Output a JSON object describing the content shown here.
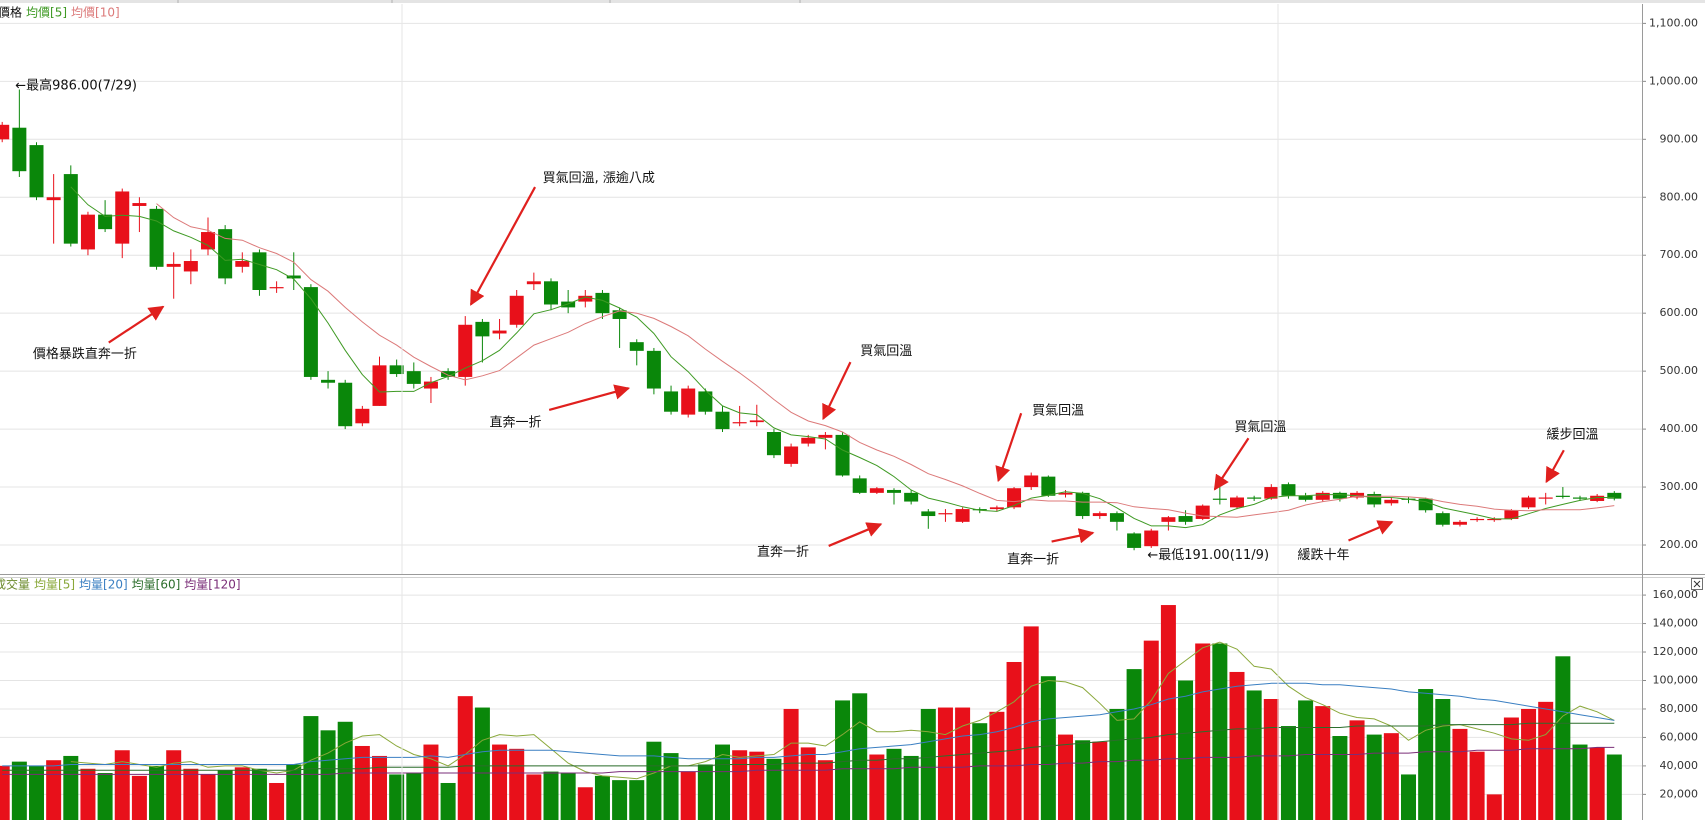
{
  "chart_data": [
    {
      "type": "candlestick",
      "label": "價格",
      "open": [
        900,
        920,
        890,
        795,
        840,
        710,
        770,
        720,
        785,
        780,
        680,
        672,
        710,
        745,
        680,
        705,
        645,
        665,
        645,
        485,
        480,
        410,
        440,
        510,
        500,
        470,
        500,
        490,
        585,
        565,
        580,
        650,
        655,
        620,
        620,
        635,
        605,
        550,
        535,
        465,
        425,
        465,
        430,
        410,
        412,
        395,
        340,
        375,
        385,
        390,
        315,
        290,
        295,
        290,
        258,
        255,
        240,
        262,
        262,
        265,
        300,
        318,
        287,
        290,
        250,
        255,
        220,
        198,
        240,
        250,
        245,
        280,
        265,
        282,
        280,
        305,
        285,
        278,
        290,
        282,
        288,
        272,
        280,
        280,
        255,
        235,
        245,
        245,
        245,
        265,
        282,
        285,
        282,
        276,
        290
      ],
      "high": [
        930,
        986,
        895,
        840,
        855,
        775,
        795,
        815,
        800,
        785,
        705,
        710,
        765,
        752,
        705,
        710,
        655,
        705,
        650,
        500,
        485,
        440,
        525,
        520,
        515,
        490,
        505,
        595,
        590,
        590,
        640,
        670,
        660,
        640,
        640,
        640,
        610,
        555,
        540,
        475,
        475,
        470,
        440,
        440,
        442,
        400,
        375,
        390,
        395,
        395,
        320,
        300,
        298,
        295,
        262,
        262,
        265,
        265,
        268,
        300,
        325,
        320,
        295,
        292,
        258,
        258,
        222,
        228,
        250,
        260,
        270,
        300,
        285,
        285,
        305,
        308,
        290,
        293,
        292,
        293,
        292,
        282,
        283,
        282,
        258,
        243,
        248,
        248,
        262,
        285,
        290,
        300,
        285,
        288,
        293
      ],
      "low": [
        895,
        835,
        795,
        720,
        715,
        700,
        740,
        695,
        740,
        675,
        625,
        650,
        700,
        650,
        670,
        630,
        635,
        640,
        485,
        470,
        400,
        405,
        440,
        490,
        470,
        445,
        485,
        475,
        515,
        555,
        575,
        640,
        605,
        600,
        610,
        590,
        540,
        510,
        460,
        425,
        420,
        425,
        395,
        405,
        405,
        350,
        335,
        370,
        365,
        318,
        288,
        288,
        270,
        270,
        228,
        240,
        238,
        255,
        258,
        262,
        295,
        283,
        282,
        245,
        245,
        225,
        191,
        195,
        225,
        235,
        243,
        270,
        262,
        276,
        278,
        280,
        275,
        275,
        275,
        279,
        265,
        268,
        272,
        256,
        232,
        232,
        240,
        240,
        243,
        262,
        270,
        280,
        276,
        274,
        277
      ],
      "close": [
        925,
        845,
        800,
        800,
        720,
        770,
        745,
        810,
        790,
        680,
        685,
        690,
        740,
        660,
        690,
        640,
        645,
        660,
        490,
        480,
        405,
        435,
        510,
        495,
        478,
        482,
        490,
        580,
        560,
        570,
        630,
        655,
        615,
        610,
        630,
        600,
        590,
        535,
        470,
        430,
        470,
        430,
        400,
        412,
        415,
        355,
        370,
        385,
        390,
        320,
        290,
        298,
        290,
        275,
        250,
        255,
        262,
        260,
        265,
        298,
        320,
        285,
        290,
        250,
        255,
        240,
        195,
        225,
        248,
        240,
        268,
        278,
        282,
        280,
        300,
        285,
        278,
        290,
        280,
        290,
        270,
        278,
        278,
        260,
        235,
        240,
        245,
        245,
        260,
        282,
        282,
        283,
        280,
        285,
        280
      ],
      "up_color": "#e8101a",
      "down_color": "#0a870a",
      "series": [
        {
          "name": "均價[5]",
          "color": "#3f9a24",
          "values": [
            null,
            null,
            null,
            null,
            818,
            787,
            767,
            769,
            767,
            759,
            742,
            731,
            717,
            691,
            693,
            684,
            675,
            659,
            625,
            583,
            536,
            494,
            464,
            465,
            465,
            480,
            491,
            505,
            518,
            536,
            566,
            599,
            606,
            616,
            628,
            622,
            609,
            593,
            565,
            525,
            499,
            467,
            440,
            428,
            425,
            402,
            390,
            387,
            383,
            364,
            351,
            337,
            318,
            295,
            281,
            274,
            266,
            260,
            258,
            268,
            281,
            286,
            292,
            289,
            280,
            264,
            246,
            233,
            233,
            230,
            235,
            252,
            263,
            270,
            282,
            285,
            285,
            287,
            287,
            285,
            282,
            282,
            279,
            275,
            264,
            258,
            252,
            245,
            245,
            254,
            263,
            270,
            277,
            282,
            282
          ]
        },
        {
          "name": "均價[10]",
          "color": "#dc7a7a",
          "values": [
            null,
            null,
            null,
            null,
            null,
            null,
            null,
            null,
            null,
            789,
            765,
            749,
            743,
            729,
            726,
            713,
            703,
            688,
            658,
            638,
            610,
            585,
            562,
            545,
            524,
            508,
            493,
            485,
            492,
            501,
            523,
            545,
            556,
            567,
            582,
            594,
            604,
            600,
            591,
            577,
            561,
            538,
            517,
            497,
            475,
            451,
            429,
            414,
            406,
            395,
            377,
            364,
            353,
            339,
            323,
            313,
            302,
            289,
            277,
            275,
            278,
            276,
            276,
            274,
            274,
            273,
            266,
            263,
            261,
            255,
            250,
            249,
            248,
            252,
            256,
            260,
            269,
            275,
            279,
            284,
            284,
            284,
            283,
            281,
            275,
            270,
            267,
            262,
            260,
            259,
            261,
            261,
            261,
            264,
            268
          ]
        }
      ],
      "annotations": [
        "←最高986.00(7/29)",
        "價格暴跌直奔一折",
        "買氣回溫, 漲逾八成",
        "直奔一折",
        "買氣回溫",
        "直奔一折",
        "買氣回溫",
        "直奔一折",
        "買氣回溫",
        "緩跌十年",
        "緩步回溫",
        "←最低191.00(11/9)"
      ],
      "ylim": [
        150,
        1130
      ],
      "yticks": [
        {
          "value": 200,
          "label": "200.00"
        },
        {
          "value": 300,
          "label": "300.00"
        },
        {
          "value": 400,
          "label": "400.00"
        },
        {
          "value": 500,
          "label": "500.00"
        },
        {
          "value": 600,
          "label": "600.00"
        },
        {
          "value": 700,
          "label": "700.00"
        },
        {
          "value": 800,
          "label": "800.00"
        },
        {
          "value": 900,
          "label": "900.00"
        },
        {
          "value": 1000,
          "label": "1,000.00"
        },
        {
          "value": 1100,
          "label": "1,100.00"
        }
      ],
      "grid": true
    },
    {
      "type": "bar",
      "label": "成交量",
      "values": [
        40000,
        43000,
        40000,
        44000,
        47000,
        38000,
        35000,
        51000,
        33000,
        40000,
        51000,
        38000,
        34000,
        37000,
        39000,
        38000,
        28000,
        41000,
        75000,
        65000,
        71000,
        54000,
        47000,
        34000,
        35000,
        55000,
        28000,
        89000,
        81000,
        55000,
        52000,
        34000,
        36000,
        35000,
        25000,
        33000,
        30000,
        30000,
        57000,
        49000,
        36000,
        41000,
        55000,
        51000,
        50000,
        45000,
        80000,
        53000,
        44000,
        86000,
        91000,
        48000,
        52000,
        47000,
        80000,
        81000,
        81000,
        70000,
        78000,
        113000,
        138000,
        103000,
        62000,
        58000,
        57000,
        80000,
        108000,
        128000,
        153000,
        100000,
        126000,
        126000,
        106000,
        93000,
        87000,
        68000,
        86000,
        82000,
        61000,
        72000,
        62000,
        63000,
        34000,
        94000,
        87000,
        66000,
        50000,
        20000,
        74000,
        80000,
        85000,
        117000,
        55000,
        53000,
        48000
      ],
      "series": [
        {
          "name": "均量[5]",
          "color": "#8aa83a",
          "values": [
            null,
            null,
            null,
            null,
            43000,
            42000,
            41000,
            43000,
            41000,
            39000,
            42000,
            43000,
            39000,
            40000,
            40000,
            37000,
            35000,
            37000,
            44000,
            49000,
            56000,
            61000,
            62000,
            54000,
            48000,
            45000,
            40000,
            48000,
            58000,
            62000,
            61000,
            62000,
            52000,
            42000,
            36000,
            33000,
            32000,
            31000,
            35000,
            40000,
            40000,
            43000,
            48000,
            46000,
            47000,
            48000,
            56000,
            56000,
            54000,
            62000,
            71000,
            64000,
            64000,
            65000,
            64000,
            62000,
            68000,
            72000,
            78000,
            85000,
            96000,
            100000,
            99000,
            95000,
            84000,
            72000,
            73000,
            86000,
            105000,
            114000,
            123000,
            127000,
            122000,
            110000,
            108000,
            96000,
            88000,
            83000,
            77000,
            74000,
            73000,
            68000,
            58000,
            65000,
            68000,
            69000,
            66000,
            63000,
            59000,
            58000,
            62000,
            75000,
            82000,
            78000,
            72000
          ]
        },
        {
          "name": "均量[20]",
          "color": "#3a7fc2",
          "values": [
            40000,
            40000,
            40000,
            40000,
            41000,
            41000,
            41000,
            41000,
            41000,
            41000,
            41000,
            41000,
            41000,
            41000,
            41000,
            41000,
            41000,
            41000,
            43000,
            44000,
            45000,
            46000,
            46000,
            46000,
            46000,
            47000,
            46000,
            48000,
            50000,
            51000,
            51000,
            51000,
            51000,
            50000,
            49000,
            48000,
            47000,
            47000,
            47000,
            46000,
            45000,
            45000,
            45000,
            45000,
            46000,
            46000,
            47000,
            48000,
            48000,
            50000,
            52000,
            53000,
            54000,
            55000,
            57000,
            59000,
            61000,
            62000,
            64000,
            67000,
            71000,
            73000,
            74000,
            75000,
            76000,
            78000,
            80000,
            83000,
            87000,
            89000,
            92000,
            94000,
            96000,
            97000,
            98000,
            98000,
            98000,
            97000,
            97000,
            96000,
            95000,
            94000,
            92000,
            91000,
            90000,
            89000,
            87000,
            86000,
            84000,
            82000,
            80000,
            78000,
            76000,
            74000,
            72000
          ]
        },
        {
          "name": "均量[60]",
          "color": "#2c6e2c",
          "values": [
            37000,
            37000,
            37000,
            37000,
            37000,
            37000,
            37000,
            37000,
            37000,
            37000,
            37000,
            37000,
            37000,
            37000,
            37000,
            37000,
            37000,
            37000,
            38000,
            38000,
            38000,
            38000,
            39000,
            39000,
            39000,
            39000,
            39000,
            40000,
            40000,
            40000,
            40000,
            40000,
            40000,
            40000,
            40000,
            40000,
            40000,
            40000,
            40000,
            40000,
            40000,
            40000,
            41000,
            41000,
            41000,
            41000,
            42000,
            42000,
            42000,
            43000,
            44000,
            44000,
            45000,
            45000,
            46000,
            47000,
            48000,
            49000,
            50000,
            51000,
            53000,
            54000,
            55000,
            56000,
            57000,
            58000,
            59000,
            60000,
            62000,
            63000,
            64000,
            65000,
            66000,
            66000,
            67000,
            67000,
            67000,
            67000,
            67000,
            68000,
            68000,
            68000,
            68000,
            68000,
            69000,
            69000,
            69000,
            69000,
            69000,
            70000,
            70000,
            70000,
            70000,
            70000,
            70000
          ]
        },
        {
          "name": "均量[120]",
          "color": "#7a2e78",
          "values": [
            34000,
            34000,
            34000,
            34000,
            34000,
            34000,
            34000,
            34000,
            34000,
            34000,
            34000,
            34000,
            34000,
            34000,
            34000,
            34000,
            34000,
            34000,
            34000,
            34000,
            35000,
            35000,
            35000,
            35000,
            35000,
            35000,
            35000,
            35000,
            35000,
            35000,
            35000,
            35000,
            35000,
            35000,
            35000,
            35000,
            36000,
            36000,
            36000,
            36000,
            36000,
            36000,
            36000,
            36000,
            37000,
            37000,
            37000,
            37000,
            37000,
            38000,
            38000,
            38000,
            38000,
            39000,
            39000,
            39000,
            39000,
            40000,
            40000,
            40000,
            41000,
            41000,
            42000,
            42000,
            43000,
            43000,
            44000,
            44000,
            45000,
            45000,
            46000,
            46000,
            46000,
            47000,
            47000,
            47000,
            48000,
            48000,
            48000,
            48000,
            49000,
            49000,
            49000,
            50000,
            50000,
            50000,
            51000,
            51000,
            51000,
            52000,
            52000,
            52000,
            52000,
            53000,
            53000
          ]
        }
      ],
      "ylim": [
        2000,
        172000
      ],
      "yticks": [
        {
          "value": 20000,
          "label": "20,000"
        },
        {
          "value": 40000,
          "label": "40,000"
        },
        {
          "value": 60000,
          "label": "60,000"
        },
        {
          "value": 80000,
          "label": "80,000"
        },
        {
          "value": 100000,
          "label": "100,000"
        },
        {
          "value": 120000,
          "label": "120,000"
        },
        {
          "value": 140000,
          "label": "140,000"
        },
        {
          "value": 160000,
          "label": "160,000"
        }
      ],
      "grid": true
    }
  ]
}
